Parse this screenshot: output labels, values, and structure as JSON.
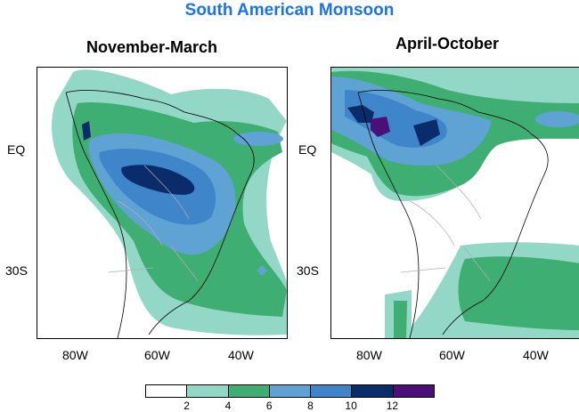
{
  "title": "South American Monsoon",
  "panels": [
    {
      "title": "November-March"
    },
    {
      "title": "April-October"
    }
  ],
  "axes": {
    "x_ticks": [
      "80W",
      "60W",
      "40W"
    ],
    "y_ticks": [
      "EQ",
      "30S"
    ]
  },
  "legend": {
    "labels": [
      "2",
      "4",
      "6",
      "8",
      "10",
      "12"
    ],
    "colors": [
      "#ffffff",
      "#93d7c7",
      "#3fae73",
      "#5fa2d4",
      "#3e86c9",
      "#0b2c6b",
      "#4b0f7a"
    ]
  }
}
